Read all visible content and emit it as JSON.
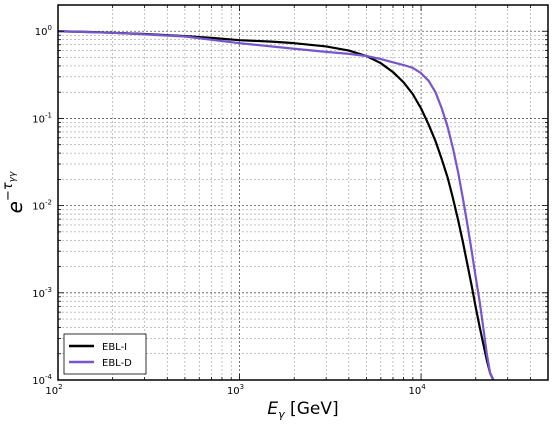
{
  "chart_data": {
    "type": "line",
    "title": "",
    "xlabel": {
      "base": "E",
      "subscript": "γ",
      "unit": " [GeV]"
    },
    "ylabel": {
      "base": "e",
      "superscript": "−τ",
      "sub_superscript": "γγ"
    },
    "xscale": "log",
    "yscale": "log",
    "xlim": [
      100,
      50000
    ],
    "ylim": [
      0.0001,
      2
    ],
    "grid": true,
    "legend_position": "bottom-left",
    "x_ticks": [
      {
        "base": "10",
        "exp": "2",
        "value": 100
      },
      {
        "base": "10",
        "exp": "3",
        "value": 1000
      },
      {
        "base": "10",
        "exp": "4",
        "value": 10000
      }
    ],
    "y_ticks": [
      {
        "base": "10",
        "exp": "0",
        "value": 1
      },
      {
        "base": "10",
        "exp": "-1",
        "value": 0.1
      },
      {
        "base": "10",
        "exp": "-2",
        "value": 0.01
      },
      {
        "base": "10",
        "exp": "-3",
        "value": 0.001
      },
      {
        "base": "10",
        "exp": "-4",
        "value": 0.0001
      }
    ],
    "series": [
      {
        "name": "EBL-I",
        "color": "#000000",
        "x": [
          100,
          150,
          200,
          300,
          500,
          700,
          1000,
          1500,
          2000,
          3000,
          4000,
          5000,
          6000,
          7000,
          8000,
          9000,
          10000,
          11000,
          12000,
          13000,
          14000,
          15000,
          16000,
          17000,
          18000,
          19000,
          20000,
          21000,
          22000,
          23000,
          24000,
          25000,
          26000
        ],
        "y": [
          1.0,
          0.98,
          0.96,
          0.93,
          0.88,
          0.84,
          0.79,
          0.76,
          0.73,
          0.67,
          0.6,
          0.52,
          0.43,
          0.34,
          0.26,
          0.19,
          0.13,
          0.085,
          0.055,
          0.034,
          0.021,
          0.012,
          0.0068,
          0.0038,
          0.0021,
          0.0012,
          0.00068,
          0.00041,
          0.00026,
          0.00017,
          0.00012,
          0.0001,
          8.5e-05
        ]
      },
      {
        "name": "EBL-D",
        "color": "#7755cc",
        "x": [
          100,
          200,
          500,
          1000,
          2000,
          3000,
          4000,
          5000,
          6000,
          7000,
          8000,
          9000,
          10000,
          11000,
          12000,
          13000,
          14000,
          15000,
          16000,
          17000,
          18000,
          19000,
          20000,
          21000,
          22000,
          23000,
          24000,
          25000,
          26000
        ],
        "y": [
          1.0,
          0.96,
          0.87,
          0.73,
          0.63,
          0.58,
          0.55,
          0.52,
          0.48,
          0.44,
          0.41,
          0.38,
          0.33,
          0.27,
          0.2,
          0.13,
          0.08,
          0.045,
          0.024,
          0.012,
          0.006,
          0.003,
          0.0015,
          0.0008,
          0.0004,
          0.0002,
          0.00012,
          0.0001,
          9e-05
        ]
      }
    ]
  }
}
